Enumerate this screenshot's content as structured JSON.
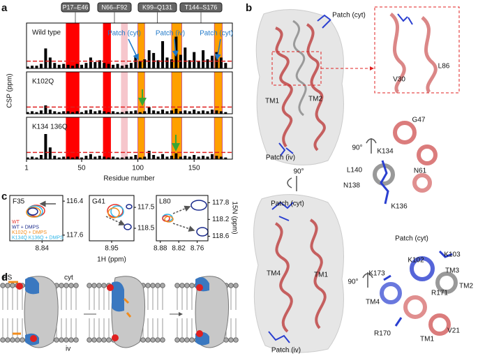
{
  "panel_labels": [
    "a",
    "b",
    "c",
    "d"
  ],
  "panel_a": {
    "ylabel": "CSP (ppm)",
    "xlabel": "Residue number",
    "segments": [
      "P17–E46",
      "N66–F92",
      "K99–Q131",
      "T144–S176"
    ],
    "annotations": [
      "Patch (cyt)",
      "Patch (iv)",
      "Patch (cyt)"
    ],
    "threshold": 0.08,
    "highlights": [
      {
        "start": 36,
        "end": 48,
        "color": "#ff0000"
      },
      {
        "start": 69,
        "end": 76,
        "color": "#ff0000"
      },
      {
        "start": 85,
        "end": 91,
        "color": "#f6c6cc"
      },
      {
        "start": 100,
        "end": 106,
        "color": "#ffa000"
      },
      {
        "start": 130,
        "end": 139,
        "color": "#ffa000"
      },
      {
        "start": 168,
        "end": 175,
        "color": "#ffa000"
      }
    ]
  },
  "chart_data": [
    {
      "type": "bar",
      "label": "Wild type",
      "color": "#000000",
      "xlim": [
        1,
        184
      ],
      "ylim": [
        0,
        0.5
      ],
      "x": [
        2,
        6,
        10,
        14,
        18,
        22,
        26,
        30,
        34,
        38,
        42,
        46,
        50,
        54,
        58,
        62,
        66,
        70,
        74,
        78,
        82,
        86,
        90,
        94,
        98,
        102,
        106,
        110,
        114,
        118,
        122,
        126,
        130,
        134,
        138,
        142,
        146,
        150,
        154,
        158,
        162,
        166,
        170,
        174,
        178
      ],
      "values": [
        0.02,
        0.03,
        0.03,
        0.05,
        0.22,
        0.12,
        0.06,
        0.04,
        0.05,
        0.04,
        0.03,
        0.05,
        0.04,
        0.06,
        0.12,
        0.07,
        0.09,
        0.06,
        0.05,
        0.04,
        0.05,
        0.03,
        0.04,
        0.06,
        0.14,
        0.08,
        0.1,
        0.2,
        0.17,
        0.09,
        0.3,
        0.12,
        0.1,
        0.35,
        0.15,
        0.23,
        0.09,
        0.18,
        0.08,
        0.2,
        0.1,
        0.14,
        0.18,
        0.12,
        0.06
      ]
    },
    {
      "type": "bar",
      "label": "K102Q",
      "color": "#000000",
      "xlim": [
        1,
        184
      ],
      "ylim": [
        0,
        0.5
      ],
      "x": [
        2,
        6,
        10,
        14,
        18,
        22,
        26,
        30,
        34,
        38,
        42,
        46,
        50,
        54,
        58,
        62,
        66,
        70,
        74,
        78,
        82,
        86,
        90,
        94,
        98,
        102,
        106,
        110,
        114,
        118,
        122,
        126,
        130,
        134,
        138,
        142,
        146,
        150,
        154,
        158,
        162,
        166,
        170,
        174,
        178
      ],
      "values": [
        0.02,
        0.03,
        0.02,
        0.04,
        0.1,
        0.05,
        0.03,
        0.02,
        0.03,
        0.03,
        0.02,
        0.03,
        0.02,
        0.04,
        0.05,
        0.03,
        0.04,
        0.03,
        0.02,
        0.03,
        0.02,
        0.02,
        0.03,
        0.03,
        0.04,
        0.02,
        0.03,
        0.08,
        0.04,
        0.03,
        0.05,
        0.03,
        0.04,
        0.06,
        0.03,
        0.04,
        0.03,
        0.05,
        0.03,
        0.04,
        0.03,
        0.05,
        0.04,
        0.03,
        0.02
      ]
    },
    {
      "type": "bar",
      "label": "K134 136Q",
      "color": "#000000",
      "xlim": [
        1,
        184
      ],
      "ylim": [
        0,
        0.5
      ],
      "xticks": [
        1,
        50,
        100,
        150
      ],
      "x": [
        2,
        6,
        10,
        14,
        18,
        22,
        26,
        30,
        34,
        38,
        42,
        46,
        50,
        54,
        58,
        62,
        66,
        70,
        74,
        78,
        82,
        86,
        90,
        94,
        98,
        102,
        106,
        110,
        114,
        118,
        122,
        126,
        130,
        134,
        138,
        142,
        146,
        150,
        154,
        158,
        162,
        166,
        170,
        174,
        178
      ],
      "values": [
        0.02,
        0.03,
        0.02,
        0.05,
        0.3,
        0.14,
        0.04,
        0.02,
        0.03,
        0.03,
        0.02,
        0.03,
        0.02,
        0.04,
        0.06,
        0.03,
        0.04,
        0.03,
        0.02,
        0.03,
        0.02,
        0.02,
        0.03,
        0.03,
        0.05,
        0.02,
        0.03,
        0.1,
        0.05,
        0.03,
        0.06,
        0.03,
        0.04,
        0.07,
        0.03,
        0.04,
        0.03,
        0.05,
        0.03,
        0.04,
        0.03,
        0.06,
        0.04,
        0.03,
        0.02
      ]
    }
  ],
  "panel_b": {
    "labels": [
      "Patch (cyt)",
      "L86",
      "V30",
      "TM1",
      "TM2",
      "Patch (iv)",
      "90°",
      "G47",
      "90°",
      "K134",
      "N61",
      "L140",
      "N138",
      "K136",
      "Patch (cyt)",
      "TM4",
      "TM1",
      "Patch (iv)",
      "90°",
      "Patch (cyt)",
      "K103",
      "K102",
      "TM3",
      "K173",
      "TM2",
      "R171",
      "TM4",
      "R170",
      "TM1",
      "V21"
    ]
  },
  "panel_c": {
    "xlabel": "1H (ppm)",
    "ylabel": "15N (ppm)",
    "legend": [
      {
        "name": "WT",
        "color": "#e8312a"
      },
      {
        "name": "WT + DMPS",
        "color": "#1a2a8c"
      },
      {
        "name": "K102Q + DMPS",
        "color": "#f28c1c"
      },
      {
        "name": "K134Q K136Q + DMPS",
        "color": "#2cb5e8"
      }
    ],
    "spectra": [
      {
        "title": "F35",
        "xlim": [
          8.868,
          8.822
        ],
        "ylim": [
          116.2,
          117.8
        ],
        "xticks": [
          8.84
        ],
        "yticks": [
          116.4,
          117.6
        ]
      },
      {
        "title": "G41",
        "xlim": [
          9.0,
          8.9
        ],
        "ylim": [
          116.93,
          119.1
        ],
        "xticks": [
          8.95
        ],
        "yticks": [
          117.5,
          118.5
        ]
      },
      {
        "title": "L80",
        "xlim": [
          8.893,
          8.725
        ],
        "ylim": [
          117.63,
          118.71
        ],
        "xticks": [
          8.88,
          8.82,
          8.76
        ],
        "yticks": [
          117.8,
          118.2,
          118.6
        ]
      }
    ]
  },
  "panel_d": {
    "labels": [
      "PS",
      "cyt",
      "iv"
    ]
  }
}
